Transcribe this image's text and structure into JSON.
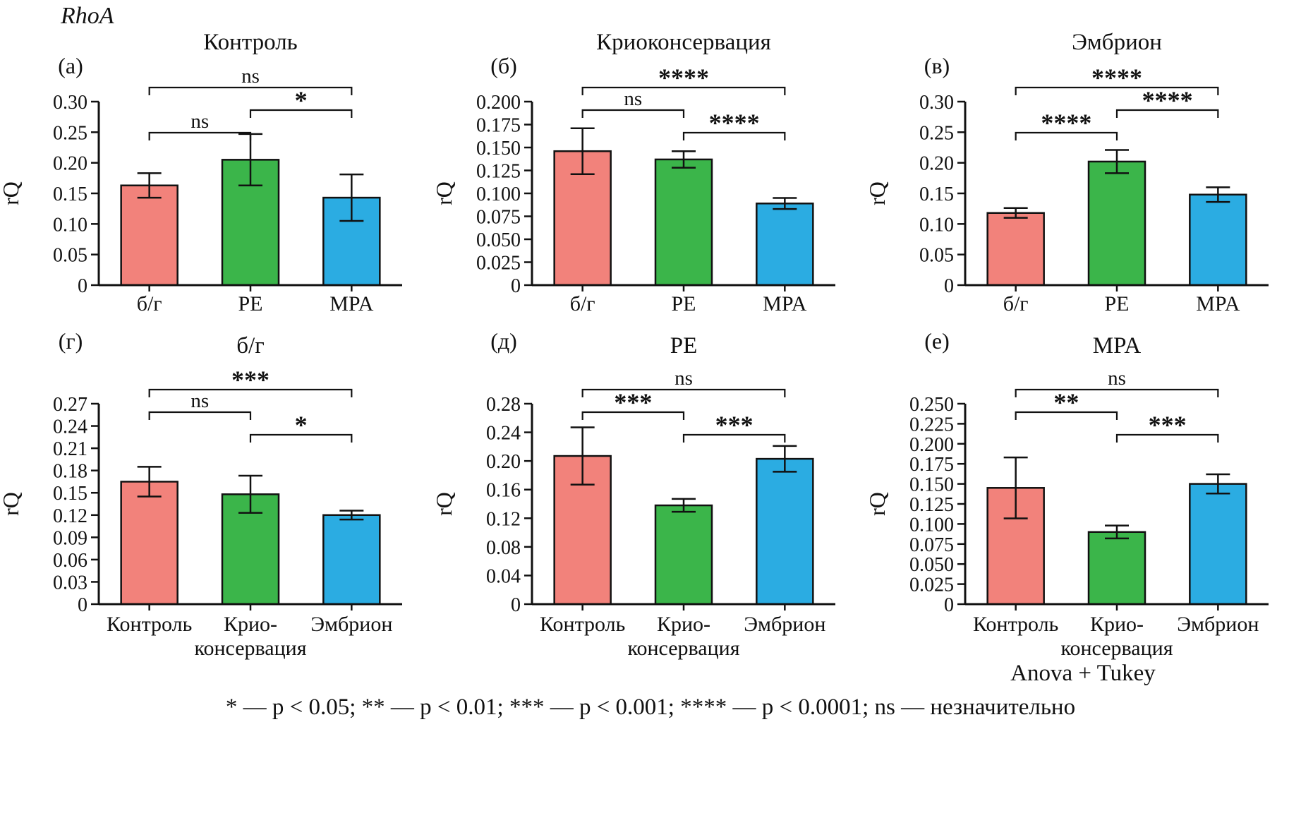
{
  "figure_label": "RhoA",
  "colors": {
    "bars": [
      "#F2827B",
      "#3BB54A",
      "#2BACE2"
    ],
    "axis": "#111111"
  },
  "footer": {
    "method": "Anova + Tukey",
    "significance_legend": "* — p < 0.05; ** — p < 0.01; *** — p < 0.001; **** — p < 0.0001; ns — незначительно"
  },
  "chart_data": [
    {
      "type": "bar",
      "panel_label": "(а)",
      "title": "Контроль",
      "ylabel": "rQ",
      "categories": [
        "б/г",
        "PE",
        "MPA"
      ],
      "values": [
        0.163,
        0.205,
        0.143
      ],
      "errors": [
        0.02,
        0.042,
        0.038
      ],
      "ylim": [
        0,
        0.3
      ],
      "yticks": [
        0,
        0.05,
        0.1,
        0.15,
        0.2,
        0.25,
        0.3
      ],
      "ytick_labels": [
        "0",
        "0.05",
        "0.10",
        "0.15",
        "0.20",
        "0.25",
        "0.30"
      ],
      "grid": false,
      "legend_position": "none",
      "significance": [
        {
          "pair": [
            0,
            2
          ],
          "label": "ns",
          "level": 3
        },
        {
          "pair": [
            0,
            1
          ],
          "label": "ns",
          "level": 1
        },
        {
          "pair": [
            1,
            2
          ],
          "label": "*",
          "level": 2
        }
      ]
    },
    {
      "type": "bar",
      "panel_label": "(б)",
      "title": "Криоконсервация",
      "ylabel": "rQ",
      "categories": [
        "б/г",
        "PE",
        "MPA"
      ],
      "values": [
        0.146,
        0.137,
        0.089
      ],
      "errors": [
        0.025,
        0.009,
        0.006
      ],
      "ylim": [
        0,
        0.2
      ],
      "yticks": [
        0,
        0.025,
        0.05,
        0.075,
        0.1,
        0.125,
        0.15,
        0.175,
        0.2
      ],
      "ytick_labels": [
        "0",
        "0.025",
        "0.050",
        "0.075",
        "0.100",
        "0.125",
        "0.150",
        "0.175",
        "0.200"
      ],
      "grid": false,
      "legend_position": "none",
      "significance": [
        {
          "pair": [
            0,
            2
          ],
          "label": "****",
          "level": 3
        },
        {
          "pair": [
            0,
            1
          ],
          "label": "ns",
          "level": 2
        },
        {
          "pair": [
            1,
            2
          ],
          "label": "****",
          "level": 1
        }
      ]
    },
    {
      "type": "bar",
      "panel_label": "(в)",
      "title": "Эмбрион",
      "ylabel": "rQ",
      "categories": [
        "б/г",
        "PE",
        "MPA"
      ],
      "values": [
        0.118,
        0.202,
        0.148
      ],
      "errors": [
        0.008,
        0.019,
        0.012
      ],
      "ylim": [
        0,
        0.3
      ],
      "yticks": [
        0,
        0.05,
        0.1,
        0.15,
        0.2,
        0.25,
        0.3
      ],
      "ytick_labels": [
        "0",
        "0.05",
        "0.10",
        "0.15",
        "0.20",
        "0.25",
        "0.30"
      ],
      "grid": false,
      "legend_position": "none",
      "significance": [
        {
          "pair": [
            0,
            2
          ],
          "label": "****",
          "level": 3
        },
        {
          "pair": [
            0,
            1
          ],
          "label": "****",
          "level": 1
        },
        {
          "pair": [
            1,
            2
          ],
          "label": "****",
          "level": 2
        }
      ]
    },
    {
      "type": "bar",
      "panel_label": "(г)",
      "title": "б/г",
      "ylabel": "rQ",
      "categories": [
        "Контроль",
        "Крио-\nконсервация",
        "Эмбрион"
      ],
      "values": [
        0.165,
        0.148,
        0.12
      ],
      "errors": [
        0.02,
        0.025,
        0.006
      ],
      "ylim": [
        0,
        0.27
      ],
      "yticks": [
        0,
        0.03,
        0.06,
        0.09,
        0.12,
        0.15,
        0.18,
        0.21,
        0.24,
        0.27
      ],
      "ytick_labels": [
        "0",
        "0.03",
        "0.06",
        "0.09",
        "0.12",
        "0.15",
        "0.18",
        "0.21",
        "0.24",
        "0.27"
      ],
      "grid": false,
      "legend_position": "none",
      "significance": [
        {
          "pair": [
            0,
            2
          ],
          "label": "***",
          "level": 3
        },
        {
          "pair": [
            0,
            1
          ],
          "label": "ns",
          "level": 2
        },
        {
          "pair": [
            1,
            2
          ],
          "label": "*",
          "level": 1
        }
      ]
    },
    {
      "type": "bar",
      "panel_label": "(д)",
      "title": "PE",
      "ylabel": "rQ",
      "categories": [
        "Контроль",
        "Крио-\nконсервация",
        "Эмбрион"
      ],
      "values": [
        0.207,
        0.138,
        0.203
      ],
      "errors": [
        0.04,
        0.009,
        0.018
      ],
      "ylim": [
        0,
        0.28
      ],
      "yticks": [
        0,
        0.04,
        0.08,
        0.12,
        0.16,
        0.2,
        0.24,
        0.28
      ],
      "ytick_labels": [
        "0",
        "0.04",
        "0.08",
        "0.12",
        "0.16",
        "0.20",
        "0.24",
        "0.28"
      ],
      "grid": false,
      "legend_position": "none",
      "significance": [
        {
          "pair": [
            0,
            2
          ],
          "label": "ns",
          "level": 3
        },
        {
          "pair": [
            0,
            1
          ],
          "label": "***",
          "level": 2
        },
        {
          "pair": [
            1,
            2
          ],
          "label": "***",
          "level": 1
        }
      ]
    },
    {
      "type": "bar",
      "panel_label": "(е)",
      "title": "MPA",
      "ylabel": "rQ",
      "categories": [
        "Контроль",
        "Крио-\nконсервация",
        "Эмбрион"
      ],
      "values": [
        0.145,
        0.09,
        0.15
      ],
      "errors": [
        0.038,
        0.008,
        0.012
      ],
      "ylim": [
        0,
        0.25
      ],
      "yticks": [
        0,
        0.025,
        0.05,
        0.075,
        0.1,
        0.125,
        0.15,
        0.175,
        0.2,
        0.225,
        0.25
      ],
      "ytick_labels": [
        "0",
        "0.025",
        "0.050",
        "0.075",
        "0.100",
        "0.125",
        "0.150",
        "0.175",
        "0.200",
        "0.225",
        "0.250"
      ],
      "grid": false,
      "legend_position": "none",
      "significance": [
        {
          "pair": [
            0,
            2
          ],
          "label": "ns",
          "level": 3
        },
        {
          "pair": [
            0,
            1
          ],
          "label": "**",
          "level": 2
        },
        {
          "pair": [
            1,
            2
          ],
          "label": "***",
          "level": 1
        }
      ]
    }
  ]
}
